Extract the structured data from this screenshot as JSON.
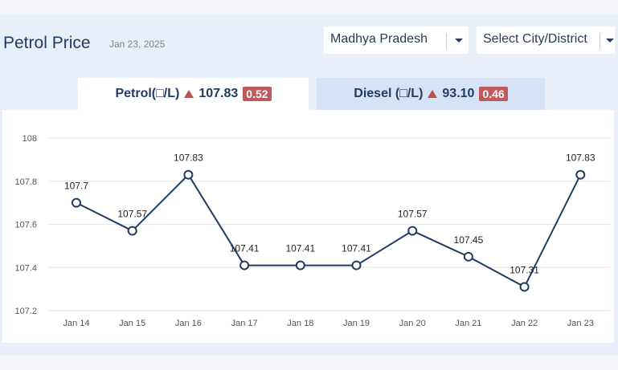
{
  "header": {
    "title": "Petrol Price",
    "date": "Jan 23, 2025"
  },
  "filters": {
    "state": "Madhya Pradesh",
    "city": "Select City/District"
  },
  "tabs": {
    "petrol": {
      "label": "Petrol(□/L)",
      "price": "107.83",
      "change": "0.52"
    },
    "diesel": {
      "label": "Diesel (□/L)",
      "price": "93.10",
      "change": "0.46"
    }
  },
  "colors": {
    "line": "#1f3c63",
    "up_arrow": "#c0504d",
    "badge": "#c05a5a"
  },
  "chart_data": {
    "type": "line",
    "categories": [
      "Jan 14",
      "Jan 15",
      "Jan 16",
      "Jan 17",
      "Jan 18",
      "Jan 19",
      "Jan 20",
      "Jan 21",
      "Jan 22",
      "Jan 23"
    ],
    "values": [
      107.7,
      107.57,
      107.83,
      107.41,
      107.41,
      107.41,
      107.57,
      107.45,
      107.31,
      107.83
    ],
    "data_labels": [
      "107.7",
      "107.57",
      "107.83",
      "107.41",
      "107.41",
      "107.41",
      "107.57",
      "107.45",
      "107.31",
      "107.83"
    ],
    "yticks": [
      "107.2",
      "107.4",
      "107.6",
      "107.8",
      "108"
    ],
    "ylim": [
      107.2,
      108
    ],
    "grid": true,
    "title": "",
    "xlabel": "",
    "ylabel": ""
  }
}
